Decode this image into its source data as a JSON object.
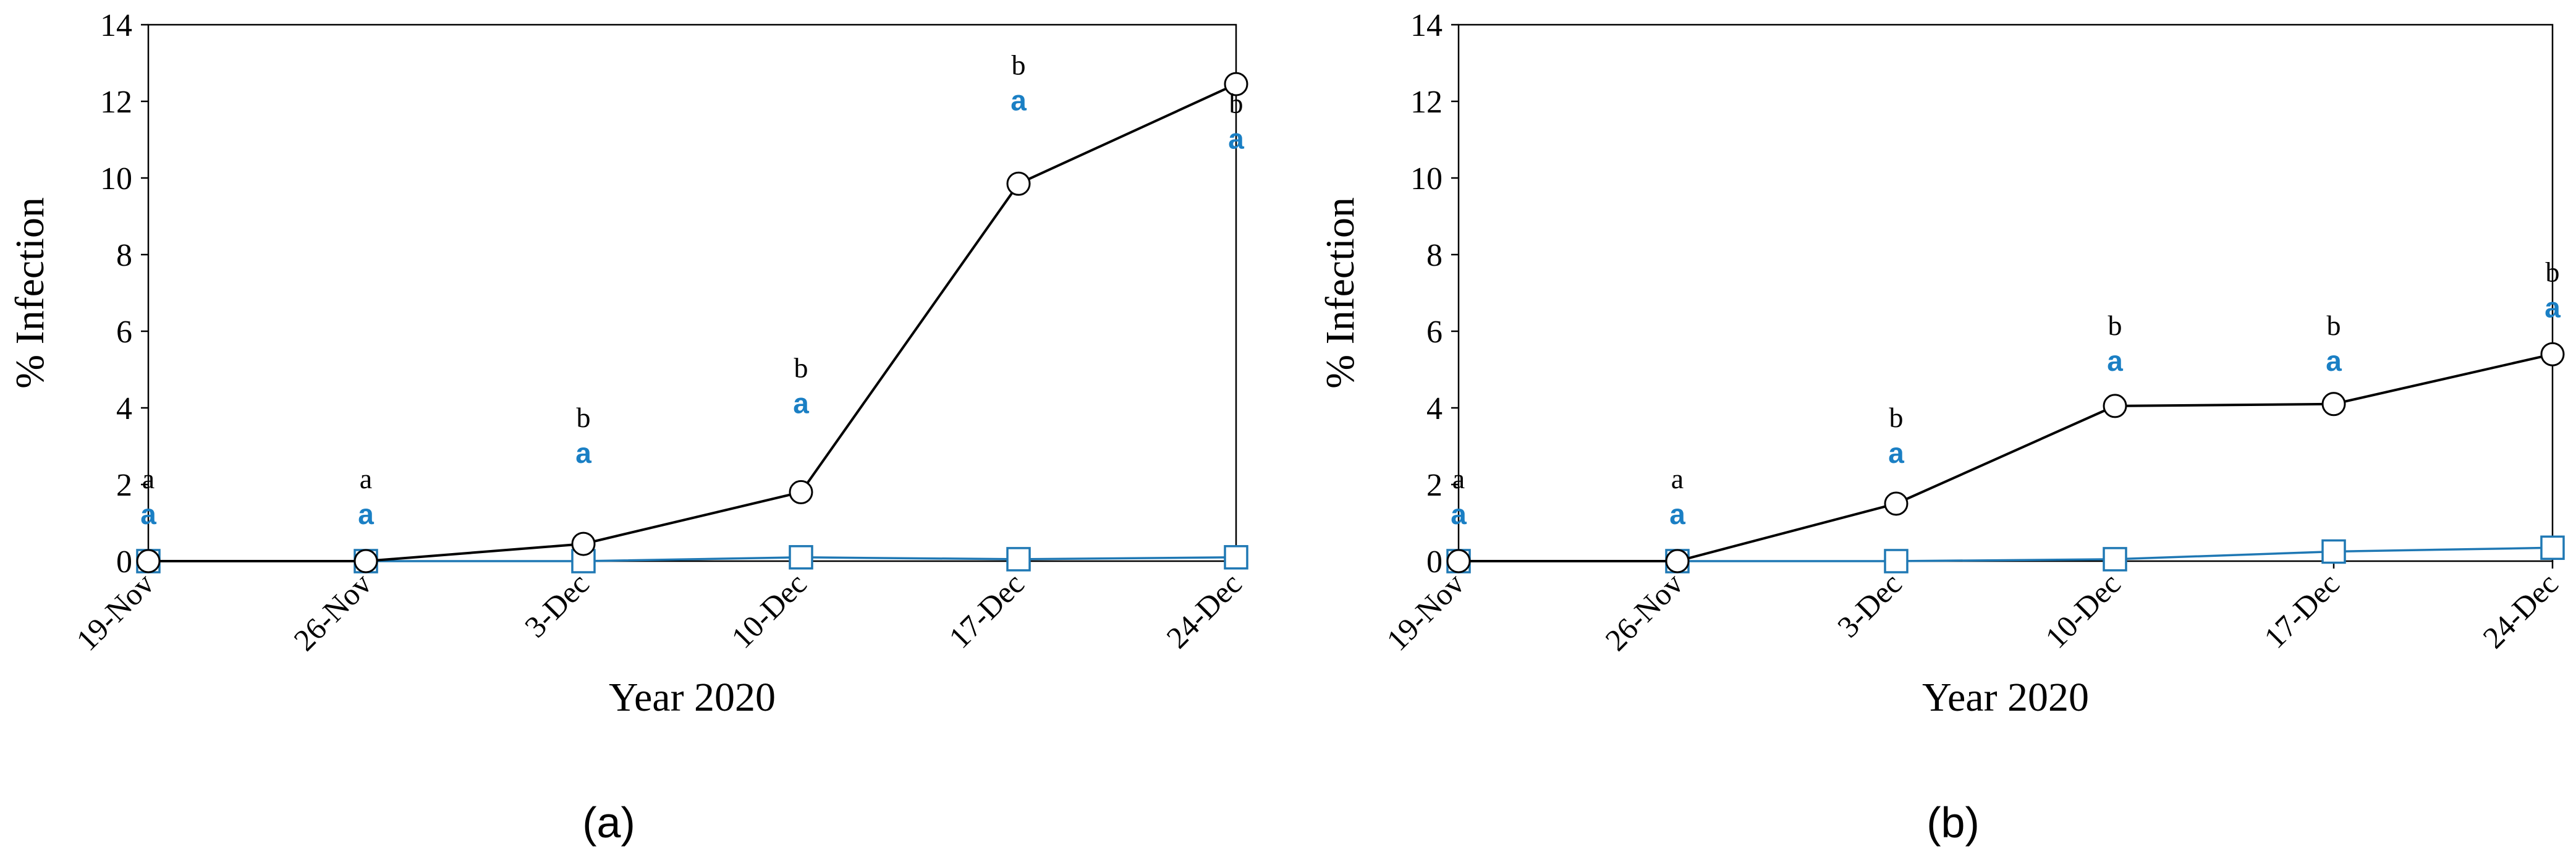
{
  "colors": {
    "series_black": "#000000",
    "series_blue": "#1f78b4",
    "sig_blue": "#1a7fc4"
  },
  "chart_data": [
    {
      "type": "line",
      "panel_label": "(a)",
      "xlabel": "Year 2020",
      "ylabel": "% Infection",
      "ylim": [
        0,
        14
      ],
      "yticks": [
        "0",
        "2",
        "4",
        "6",
        "8",
        "10",
        "12",
        "14"
      ],
      "categories": [
        "19-Nov",
        "26-Nov",
        "3-Dec",
        "10-Dec",
        "17-Dec",
        "24-Dec"
      ],
      "grid": false,
      "series": [
        {
          "marker": "circle",
          "color": "#000000",
          "values": [
            0,
            0,
            0.45,
            1.8,
            9.85,
            12.45
          ]
        },
        {
          "marker": "square",
          "color": "#1f78b4",
          "values": [
            0,
            0,
            0,
            0.1,
            0.05,
            0.1
          ]
        }
      ],
      "annotations": [
        {
          "black": "a",
          "blue": "a",
          "y": 1.9
        },
        {
          "black": "a",
          "blue": "a",
          "y": 1.9
        },
        {
          "black": "b",
          "blue": "a",
          "y": 3.5
        },
        {
          "black": "b",
          "blue": "a",
          "y": 4.8
        },
        {
          "black": "b",
          "blue": "a",
          "y": 12.7
        },
        {
          "black": "b",
          "blue": "a",
          "y": 11.7
        }
      ]
    },
    {
      "type": "line",
      "panel_label": "(b)",
      "xlabel": "Year 2020",
      "ylabel": "% Infection",
      "ylim": [
        0,
        14
      ],
      "yticks": [
        "0",
        "2",
        "4",
        "6",
        "8",
        "10",
        "12",
        "14"
      ],
      "categories": [
        "19-Nov",
        "26-Nov",
        "3-Dec",
        "10-Dec",
        "17-Dec",
        "24-Dec"
      ],
      "grid": false,
      "series": [
        {
          "marker": "circle",
          "color": "#000000",
          "values": [
            0,
            0,
            1.5,
            4.05,
            4.1,
            5.4
          ]
        },
        {
          "marker": "square",
          "color": "#1f78b4",
          "values": [
            0,
            0,
            0,
            0.05,
            0.25,
            0.35
          ]
        }
      ],
      "annotations": [
        {
          "black": "a",
          "blue": "a",
          "y": 1.9
        },
        {
          "black": "a",
          "blue": "a",
          "y": 1.9
        },
        {
          "black": "b",
          "blue": "a",
          "y": 3.5
        },
        {
          "black": "b",
          "blue": "a",
          "y": 5.9
        },
        {
          "black": "b",
          "blue": "a",
          "y": 5.9
        },
        {
          "black": "b",
          "blue": "a",
          "y": 7.3
        }
      ]
    }
  ]
}
